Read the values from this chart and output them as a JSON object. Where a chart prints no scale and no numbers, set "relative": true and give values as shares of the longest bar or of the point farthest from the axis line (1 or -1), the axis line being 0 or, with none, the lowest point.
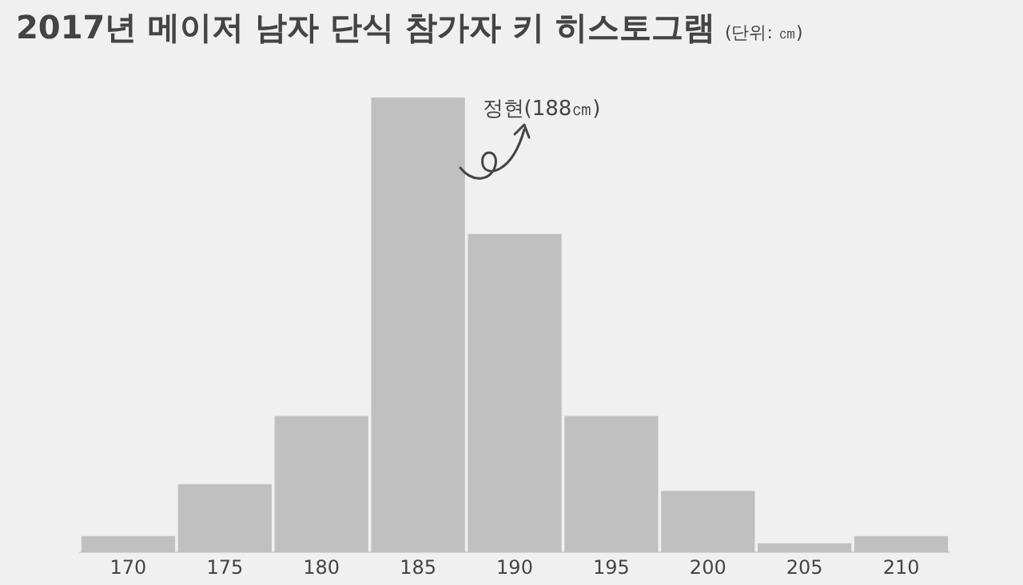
{
  "chart_data": {
    "type": "bar",
    "title": "2017년 메이저 남자 단식 참가자 키 히스토그램",
    "subtitle": "(단위: ㎝)",
    "relative": true,
    "categories": [
      "170",
      "175",
      "180",
      "185",
      "190",
      "195",
      "200",
      "205",
      "210"
    ],
    "values": [
      0.036,
      0.15,
      0.3,
      1,
      0.7,
      0.3,
      0.135,
      0.02,
      0.036
    ],
    "color": "#c0c0c0",
    "annotations": [
      "정현(188㎝)"
    ]
  }
}
